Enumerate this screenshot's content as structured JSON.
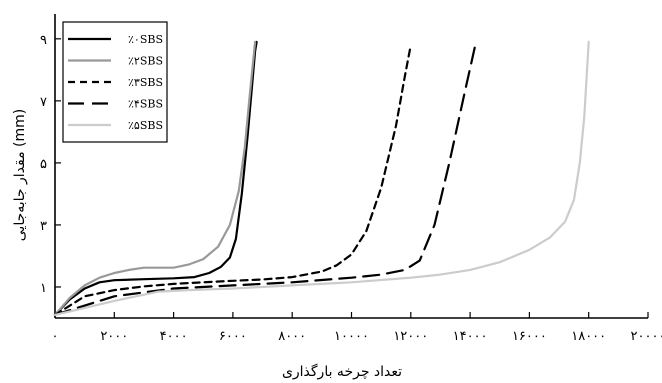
{
  "chart_data": {
    "type": "line",
    "title": "",
    "xlabel": "تعداد چرخه بارگذاری",
    "ylabel": "مقدار جابه‌جایی (mm)",
    "xlim": [
      0,
      20000
    ],
    "ylim": [
      0,
      9.8
    ],
    "x_ticks": [
      {
        "value": 0,
        "label": "۰"
      },
      {
        "value": 2000,
        "label": "۲۰۰۰"
      },
      {
        "value": 4000,
        "label": "۴۰۰۰"
      },
      {
        "value": 6000,
        "label": "۶۰۰۰"
      },
      {
        "value": 8000,
        "label": "۸۰۰۰"
      },
      {
        "value": 10000,
        "label": "۱۰۰۰۰"
      },
      {
        "value": 12000,
        "label": "۱۲۰۰۰"
      },
      {
        "value": 14000,
        "label": "۱۴۰۰۰"
      },
      {
        "value": 16000,
        "label": "۱۶۰۰۰"
      },
      {
        "value": 18000,
        "label": "۱۸۰۰۰"
      },
      {
        "value": 20000,
        "label": "۲۰۰۰۰"
      }
    ],
    "y_ticks": [
      {
        "value": 1,
        "label": "۱"
      },
      {
        "value": 3,
        "label": "۳"
      },
      {
        "value": 5,
        "label": "۵"
      },
      {
        "value": 7,
        "label": "۷"
      },
      {
        "value": 9,
        "label": "۹"
      }
    ],
    "legend_position": "top-left",
    "grid": false,
    "series": [
      {
        "name": "٪۰SBS",
        "color": "#000000",
        "dash": "solid",
        "points": [
          [
            0,
            0.1
          ],
          [
            500,
            0.6
          ],
          [
            1000,
            0.95
          ],
          [
            1500,
            1.15
          ],
          [
            2000,
            1.22
          ],
          [
            3000,
            1.25
          ],
          [
            4000,
            1.28
          ],
          [
            4700,
            1.32
          ],
          [
            5200,
            1.45
          ],
          [
            5600,
            1.65
          ],
          [
            5900,
            1.95
          ],
          [
            6100,
            2.55
          ],
          [
            6300,
            4.0
          ],
          [
            6500,
            5.9
          ],
          [
            6750,
            8.6
          ],
          [
            6800,
            8.9
          ]
        ]
      },
      {
        "name": "٪۲SBS",
        "color": "#999999",
        "dash": "solid",
        "points": [
          [
            0,
            0.1
          ],
          [
            500,
            0.65
          ],
          [
            1000,
            1.05
          ],
          [
            1500,
            1.3
          ],
          [
            2000,
            1.45
          ],
          [
            2500,
            1.55
          ],
          [
            3000,
            1.62
          ],
          [
            3500,
            1.62
          ],
          [
            4000,
            1.62
          ],
          [
            4500,
            1.72
          ],
          [
            5000,
            1.9
          ],
          [
            5500,
            2.3
          ],
          [
            5900,
            3.0
          ],
          [
            6200,
            4.1
          ],
          [
            6400,
            5.5
          ],
          [
            6550,
            7.0
          ],
          [
            6750,
            8.9
          ]
        ]
      },
      {
        "name": "٪۳SBS",
        "color": "#000000",
        "dash": "7,5",
        "points": [
          [
            0,
            0.1
          ],
          [
            1000,
            0.7
          ],
          [
            2000,
            0.9
          ],
          [
            3000,
            1.02
          ],
          [
            4000,
            1.1
          ],
          [
            5000,
            1.15
          ],
          [
            6000,
            1.2
          ],
          [
            7000,
            1.24
          ],
          [
            8000,
            1.32
          ],
          [
            9000,
            1.5
          ],
          [
            9500,
            1.7
          ],
          [
            10000,
            2.05
          ],
          [
            10500,
            2.8
          ],
          [
            11000,
            4.2
          ],
          [
            11500,
            6.2
          ],
          [
            11800,
            7.8
          ],
          [
            12000,
            8.8
          ]
        ]
      },
      {
        "name": "٪۴SBS",
        "color": "#000000",
        "dash": "16,8",
        "points": [
          [
            0,
            0.1
          ],
          [
            2000,
            0.7
          ],
          [
            4000,
            0.95
          ],
          [
            6000,
            1.05
          ],
          [
            8000,
            1.15
          ],
          [
            10000,
            1.3
          ],
          [
            11000,
            1.4
          ],
          [
            11800,
            1.55
          ],
          [
            12300,
            1.85
          ],
          [
            12800,
            3.0
          ],
          [
            13300,
            5.0
          ],
          [
            13800,
            7.2
          ],
          [
            14200,
            8.9
          ]
        ]
      },
      {
        "name": "٪۵SBS",
        "color": "#cccccc",
        "dash": "solid",
        "points": [
          [
            0,
            0.1
          ],
          [
            2000,
            0.55
          ],
          [
            3500,
            0.85
          ],
          [
            4500,
            0.9
          ],
          [
            6000,
            0.95
          ],
          [
            8000,
            1.05
          ],
          [
            10000,
            1.15
          ],
          [
            12000,
            1.3
          ],
          [
            13000,
            1.4
          ],
          [
            14000,
            1.55
          ],
          [
            15000,
            1.8
          ],
          [
            16000,
            2.2
          ],
          [
            16700,
            2.6
          ],
          [
            17200,
            3.1
          ],
          [
            17500,
            3.8
          ],
          [
            17700,
            5.0
          ],
          [
            17850,
            6.5
          ],
          [
            18000,
            8.9
          ]
        ]
      }
    ]
  }
}
